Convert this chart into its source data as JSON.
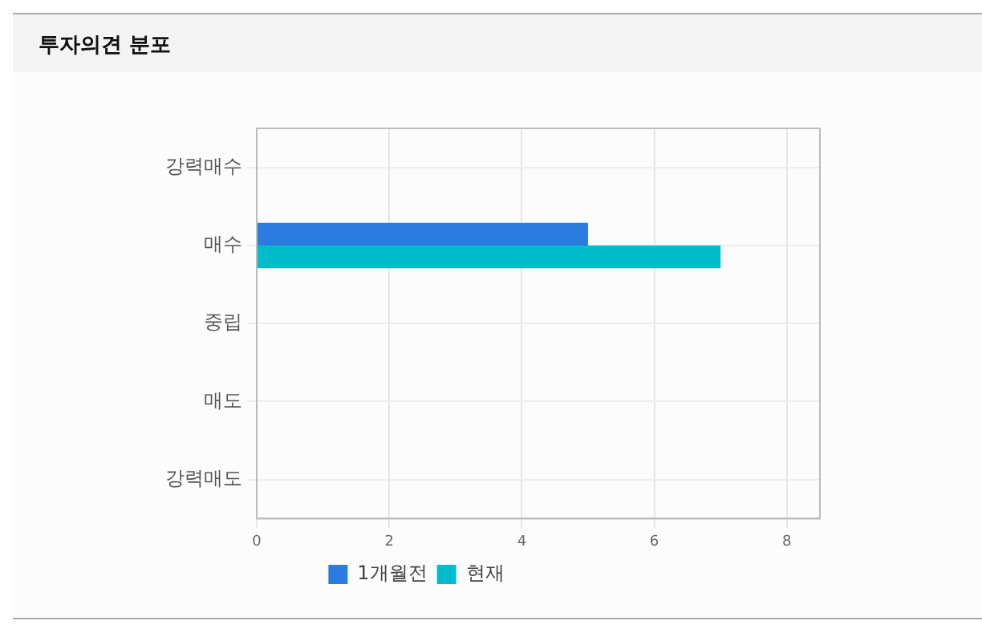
{
  "chart_data": {
    "type": "bar",
    "orientation": "horizontal",
    "title": "투자의견 분포",
    "categories": [
      "강력매수",
      "매수",
      "중립",
      "매도",
      "강력매도"
    ],
    "series": [
      {
        "name": "1개월전",
        "color": "#2b7be0",
        "values": [
          0,
          5,
          0,
          0,
          0
        ]
      },
      {
        "name": "현재",
        "color": "#00bccd",
        "values": [
          0,
          7,
          0,
          0,
          0
        ]
      }
    ],
    "xlim": [
      0,
      8.5
    ],
    "xticks": [
      0,
      2,
      4,
      6,
      8
    ],
    "grid": true,
    "legend": "bottom"
  }
}
